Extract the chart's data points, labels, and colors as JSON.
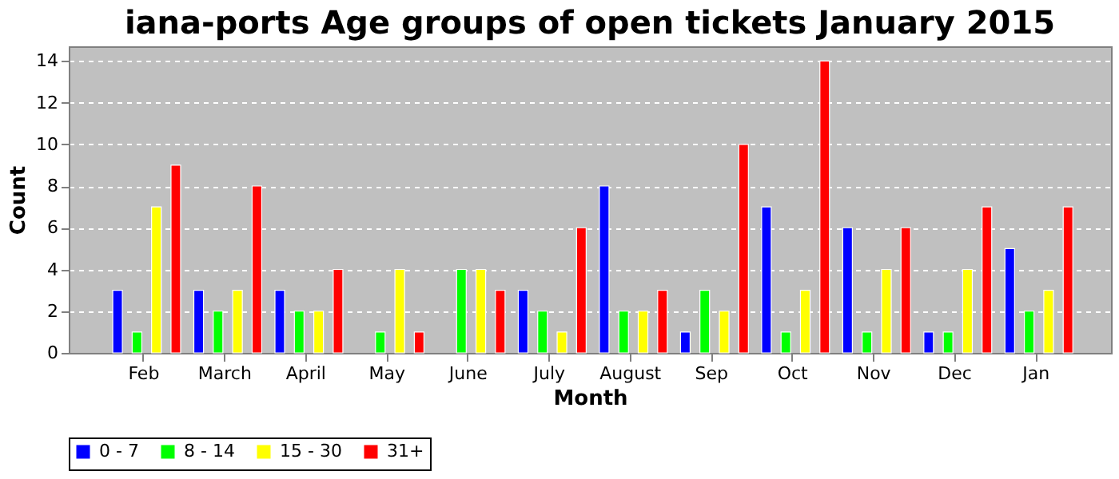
{
  "chart_data": {
    "type": "bar",
    "title": "iana-ports Age groups of open tickets January 2015",
    "xlabel": "Month",
    "ylabel": "Count",
    "categories": [
      "Feb",
      "March",
      "April",
      "May",
      "June",
      "July",
      "August",
      "Sep",
      "Oct",
      "Nov",
      "Dec",
      "Jan"
    ],
    "series": [
      {
        "name": "0 - 7",
        "color": "#0000ff",
        "values": [
          3,
          3,
          3,
          null,
          null,
          3,
          8,
          1,
          7,
          6,
          1,
          5
        ]
      },
      {
        "name": "8 - 14",
        "color": "#00ff00",
        "values": [
          1,
          2,
          2,
          1,
          4,
          2,
          2,
          3,
          1,
          1,
          1,
          2
        ]
      },
      {
        "name": "15 - 30",
        "color": "#ffff00",
        "values": [
          7,
          3,
          2,
          4,
          4,
          1,
          2,
          2,
          3,
          4,
          4,
          3
        ]
      },
      {
        "name": "31+",
        "color": "#ff0000",
        "values": [
          9,
          8,
          4,
          1,
          3,
          6,
          3,
          10,
          14,
          6,
          7,
          7
        ]
      }
    ],
    "ylim": [
      0,
      14.7
    ],
    "yticks": [
      0,
      2,
      4,
      6,
      8,
      10,
      12,
      14
    ],
    "grid": "y",
    "legend": "bottom"
  }
}
